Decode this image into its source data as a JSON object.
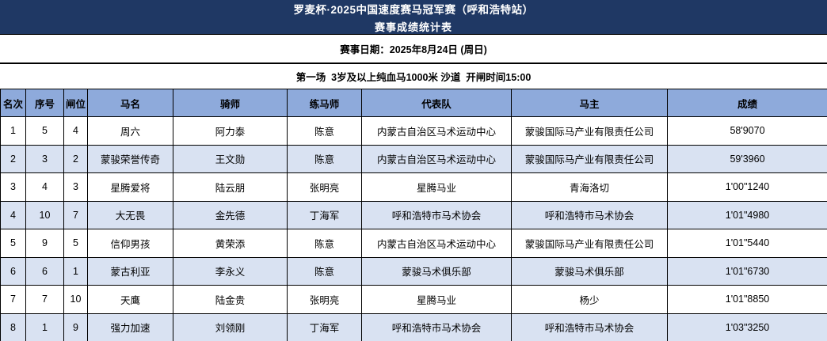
{
  "banner": {
    "title_line1": "罗麦杯·2025中国速度赛马冠军赛（呼和浩特站）",
    "title_line2": "赛事成绩统计表"
  },
  "meta": {
    "date_line": "赛事日期：2025年8月24日 (周日)",
    "race_line": "第一场  3岁及以上纯血马1000米 沙道  开闸时间15:00"
  },
  "table": {
    "columns": [
      "名次",
      "序号",
      "闸位",
      "马名",
      "骑师",
      "练马师",
      "代表队",
      "马主",
      "成绩"
    ],
    "rows": [
      [
        "1",
        "5",
        "4",
        "周六",
        "阿力泰",
        "陈意",
        "内蒙古自治区马术运动中心",
        "蒙骏国际马产业有限责任公司",
        "58'9070"
      ],
      [
        "2",
        "3",
        "2",
        "蒙骏荣誉传奇",
        "王文勋",
        "陈意",
        "内蒙古自治区马术运动中心",
        "蒙骏国际马产业有限责任公司",
        "59'3960"
      ],
      [
        "3",
        "4",
        "3",
        "星腾爱将",
        "陆云朋",
        "张明亮",
        "星腾马业",
        "青海洛切",
        "1'00\"1240"
      ],
      [
        "4",
        "10",
        "7",
        "大无畏",
        "金先德",
        "丁海军",
        "呼和浩特市马术协会",
        "呼和浩特市马术协会",
        "1'01\"4980"
      ],
      [
        "5",
        "9",
        "5",
        "信仰男孩",
        "黄荣添",
        "陈意",
        "内蒙古自治区马术运动中心",
        "蒙骏国际马产业有限责任公司",
        "1'01\"5440"
      ],
      [
        "6",
        "6",
        "1",
        "蒙古利亚",
        "李永义",
        "陈意",
        "蒙骏马术俱乐部",
        "蒙骏马术俱乐部",
        "1'01\"6730"
      ],
      [
        "7",
        "7",
        "10",
        "天鹰",
        "陆金贵",
        "张明亮",
        "星腾马业",
        "杨少",
        "1'01\"8850"
      ],
      [
        "8",
        "1",
        "9",
        "强力加速",
        "刘领刚",
        "丁海军",
        "呼和浩特市马术协会",
        "呼和浩特市马术协会",
        "1'03\"3250"
      ]
    ]
  },
  "colors": {
    "banner_navy": "#1f3864",
    "header_blue": "#8eaadb",
    "row_alt_blue": "#d9e2f2",
    "border_black": "#000000"
  }
}
